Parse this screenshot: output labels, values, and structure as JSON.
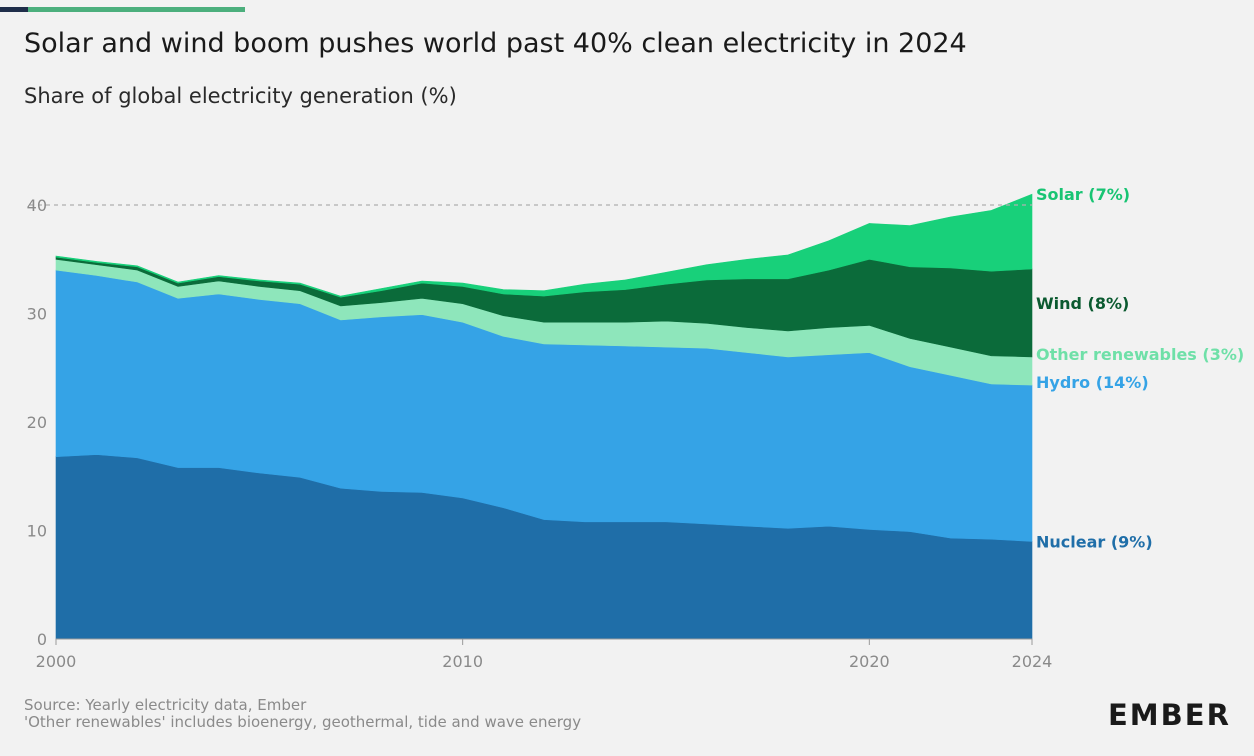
{
  "header": {
    "title": "Solar and wind boom pushes world past 40% clean electricity in 2024",
    "subtitle": "Share of global electricity generation (%)"
  },
  "footer": {
    "source": "Source: Yearly electricity data, Ember",
    "note": "'Other renewables' includes bioenergy, geothermal, tide and wave energy"
  },
  "logo": {
    "text": "EMBER"
  },
  "colors": {
    "background": "#f2f2f2",
    "accent_dark": "#1f2e4a",
    "accent_green": "#4caf7d"
  },
  "chart_data": {
    "type": "area",
    "stacked": true,
    "title": "Solar and wind boom pushes world past 40% clean electricity in 2024",
    "subtitle": "Share of global electricity generation (%)",
    "xlabel": "",
    "ylabel": "",
    "x": [
      2000,
      2001,
      2002,
      2003,
      2004,
      2005,
      2006,
      2007,
      2008,
      2009,
      2010,
      2011,
      2012,
      2013,
      2014,
      2015,
      2016,
      2017,
      2018,
      2019,
      2020,
      2021,
      2022,
      2023,
      2024
    ],
    "x_ticks": [
      "2000",
      "2010",
      "2020",
      "2024"
    ],
    "y_ticks": [
      "0",
      "10",
      "20",
      "30",
      "40"
    ],
    "ylim": [
      0,
      44
    ],
    "reference_line": {
      "y": 40,
      "style": "dashed"
    },
    "grid": false,
    "legend": "inline-right",
    "series": [
      {
        "name": "Nuclear (9%)",
        "color": "#1f6ea8",
        "values": [
          16.8,
          17.0,
          16.7,
          15.8,
          15.8,
          15.3,
          14.9,
          13.9,
          13.6,
          13.5,
          13.0,
          12.1,
          11.0,
          10.8,
          10.8,
          10.8,
          10.6,
          10.4,
          10.2,
          10.4,
          10.1,
          9.9,
          9.3,
          9.2,
          9.0
        ]
      },
      {
        "name": "Hydro (14%)",
        "color": "#35a3e6",
        "values": [
          17.2,
          16.5,
          16.2,
          15.6,
          16.0,
          16.0,
          16.0,
          15.5,
          16.1,
          16.4,
          16.2,
          15.8,
          16.2,
          16.3,
          16.2,
          16.1,
          16.2,
          16.0,
          15.8,
          15.8,
          16.3,
          15.2,
          15.0,
          14.3,
          14.4
        ]
      },
      {
        "name": "Other renewables (3%)",
        "color": "#8ee6bb",
        "values": [
          1.0,
          1.0,
          1.1,
          1.1,
          1.2,
          1.2,
          1.2,
          1.3,
          1.3,
          1.5,
          1.7,
          1.9,
          2.0,
          2.1,
          2.2,
          2.4,
          2.3,
          2.3,
          2.4,
          2.5,
          2.5,
          2.6,
          2.6,
          2.6,
          2.6
        ]
      },
      {
        "name": "Wind (8%)",
        "color": "#0b6b3a",
        "values": [
          0.2,
          0.2,
          0.3,
          0.3,
          0.4,
          0.5,
          0.6,
          0.8,
          1.1,
          1.4,
          1.6,
          2.0,
          2.4,
          2.8,
          3.0,
          3.4,
          4.0,
          4.5,
          4.8,
          5.3,
          6.1,
          6.6,
          7.3,
          7.8,
          8.1
        ]
      },
      {
        "name": "Solar (7%)",
        "color": "#18d07a",
        "values": [
          0.1,
          0.1,
          0.1,
          0.1,
          0.1,
          0.1,
          0.1,
          0.1,
          0.2,
          0.2,
          0.3,
          0.4,
          0.5,
          0.7,
          0.9,
          1.1,
          1.4,
          1.8,
          2.2,
          2.7,
          3.3,
          3.8,
          4.7,
          5.6,
          6.9
        ]
      }
    ]
  }
}
